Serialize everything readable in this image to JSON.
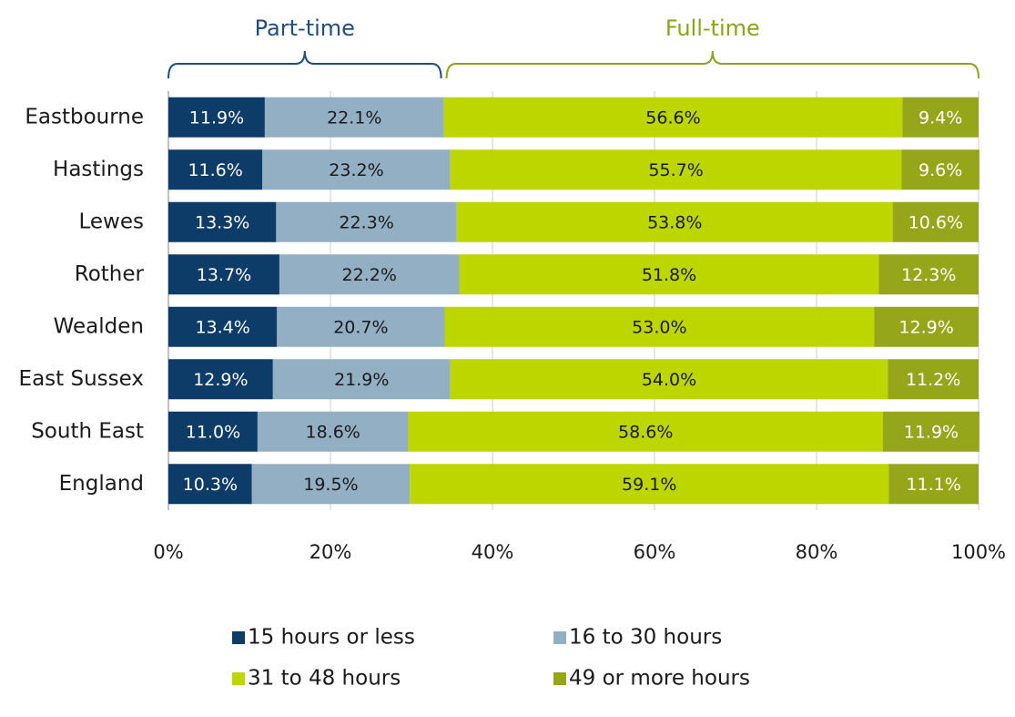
{
  "chart_data": {
    "type": "stacked-bar-horizontal",
    "categories": [
      "Eastbourne",
      "Hastings",
      "Lewes",
      "Rother",
      "Wealden",
      "East Sussex",
      "South East",
      "England"
    ],
    "series": [
      {
        "name": "15 hours or less",
        "color": "#0e3c68",
        "label_color": "#ffffff",
        "values": [
          11.9,
          11.6,
          13.3,
          13.7,
          13.4,
          12.9,
          11.0,
          10.3
        ],
        "value_labels": [
          "11.9%",
          "11.6%",
          "13.3%",
          "13.7%",
          "13.4%",
          "12.9%",
          "11.0%",
          "10.3%"
        ]
      },
      {
        "name": "16 to 30 hours",
        "color": "#93afc3",
        "label_color": "#1a1a1a",
        "values": [
          22.1,
          23.2,
          22.3,
          22.2,
          20.7,
          21.9,
          18.6,
          19.5
        ],
        "value_labels": [
          "22.1%",
          "23.2%",
          "22.3%",
          "22.2%",
          "20.7%",
          "21.9%",
          "18.6%",
          "19.5%"
        ]
      },
      {
        "name": "31 to 48 hours",
        "color": "#bed600",
        "label_color": "#1a1a1a",
        "values": [
          56.6,
          55.7,
          53.8,
          51.8,
          53.0,
          54.0,
          58.6,
          59.1
        ],
        "value_labels": [
          "56.6%",
          "55.7%",
          "53.8%",
          "51.8%",
          "53.0%",
          "54.0%",
          "58.6%",
          "59.1%"
        ]
      },
      {
        "name": "49 or more hours",
        "color": "#96a61a",
        "label_color": "#ffffff",
        "values": [
          9.4,
          9.6,
          10.6,
          12.3,
          12.9,
          11.2,
          11.9,
          11.1
        ],
        "value_labels": [
          "9.4%",
          "9.6%",
          "10.6%",
          "12.3%",
          "12.9%",
          "11.2%",
          "11.9%",
          "11.1%"
        ]
      }
    ],
    "annotations": [
      {
        "text": "Part-time",
        "color": "#1f4e79"
      },
      {
        "text": "Full-time",
        "color": "#8ea21a"
      }
    ],
    "xlim": [
      0,
      100
    ],
    "xticks": [
      {
        "value": 0,
        "label": "0%"
      },
      {
        "value": 20,
        "label": "20%"
      },
      {
        "value": 40,
        "label": "40%"
      },
      {
        "value": 60,
        "label": "60%"
      },
      {
        "value": 80,
        "label": "80%"
      },
      {
        "value": 100,
        "label": "100%"
      }
    ],
    "grid": true,
    "legend": "bottom"
  }
}
